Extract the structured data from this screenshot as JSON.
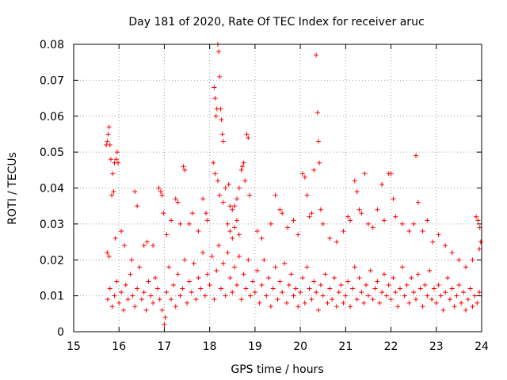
{
  "chart_data": {
    "type": "scatter",
    "title": "Day 181 of 2020, Rate Of TEC Index for receiver aruc",
    "xlabel": "GPS time / hours",
    "ylabel": "ROTI / TECUs",
    "xlim": [
      15,
      24
    ],
    "ylim": [
      0,
      0.08
    ],
    "x_ticks": [
      15,
      16,
      17,
      18,
      19,
      20,
      21,
      22,
      23,
      24
    ],
    "x_tick_labels": [
      "15",
      "16",
      "17",
      "18",
      "19",
      "20",
      "21",
      "22",
      "23",
      "24"
    ],
    "y_ticks": [
      0,
      0.01,
      0.02,
      0.03,
      0.04,
      0.05,
      0.06,
      0.07,
      0.08
    ],
    "y_tick_labels": [
      "0",
      "0.01",
      "0.02",
      "0.03",
      "0.04",
      "0.05",
      "0.06",
      "0.07",
      "0.08"
    ],
    "grid": true,
    "marker": "+",
    "marker_color": "#ff0000",
    "series": [
      {
        "points": [
          [
            15.72,
            0.052
          ],
          [
            15.74,
            0.053
          ],
          [
            15.76,
            0.055
          ],
          [
            15.78,
            0.057
          ],
          [
            15.8,
            0.052
          ],
          [
            15.82,
            0.048
          ],
          [
            15.86,
            0.044
          ],
          [
            15.9,
            0.047
          ],
          [
            15.94,
            0.048
          ],
          [
            15.96,
            0.05
          ],
          [
            15.98,
            0.047
          ],
          [
            15.88,
            0.039
          ],
          [
            15.84,
            0.038
          ],
          [
            15.74,
            0.022
          ],
          [
            15.78,
            0.021
          ],
          [
            15.92,
            0.026
          ],
          [
            16.05,
            0.028
          ],
          [
            16.12,
            0.024
          ],
          [
            16.28,
            0.02
          ],
          [
            16.35,
            0.039
          ],
          [
            16.4,
            0.035
          ],
          [
            16.55,
            0.024
          ],
          [
            16.62,
            0.025
          ],
          [
            16.75,
            0.024
          ],
          [
            16.88,
            0.04
          ],
          [
            16.92,
            0.039
          ],
          [
            16.95,
            0.038
          ],
          [
            16.98,
            0.033
          ],
          [
            17.05,
            0.027
          ],
          [
            17.15,
            0.031
          ],
          [
            17.25,
            0.037
          ],
          [
            17.3,
            0.036
          ],
          [
            17.35,
            0.03
          ],
          [
            17.42,
            0.046
          ],
          [
            17.45,
            0.045
          ],
          [
            17.55,
            0.03
          ],
          [
            17.62,
            0.033
          ],
          [
            17.75,
            0.028
          ],
          [
            17.85,
            0.037
          ],
          [
            17.92,
            0.033
          ],
          [
            17.95,
            0.031
          ],
          [
            18.1,
            0.068
          ],
          [
            18.12,
            0.065
          ],
          [
            18.14,
            0.06
          ],
          [
            18.16,
            0.062
          ],
          [
            18.18,
            0.08
          ],
          [
            18.2,
            0.078
          ],
          [
            18.22,
            0.071
          ],
          [
            18.24,
            0.062
          ],
          [
            18.26,
            0.059
          ],
          [
            18.28,
            0.055
          ],
          [
            18.3,
            0.053
          ],
          [
            18.08,
            0.047
          ],
          [
            18.12,
            0.044
          ],
          [
            18.18,
            0.042
          ],
          [
            18.22,
            0.038
          ],
          [
            18.3,
            0.036
          ],
          [
            18.35,
            0.04
          ],
          [
            18.42,
            0.041
          ],
          [
            18.45,
            0.035
          ],
          [
            18.5,
            0.034
          ],
          [
            18.55,
            0.035
          ],
          [
            18.6,
            0.037
          ],
          [
            18.65,
            0.04
          ],
          [
            18.7,
            0.045
          ],
          [
            18.72,
            0.046
          ],
          [
            18.75,
            0.047
          ],
          [
            18.78,
            0.042
          ],
          [
            18.82,
            0.055
          ],
          [
            18.85,
            0.054
          ],
          [
            18.88,
            0.038
          ],
          [
            18.4,
            0.03
          ],
          [
            18.45,
            0.028
          ],
          [
            18.5,
            0.026
          ],
          [
            18.55,
            0.029
          ],
          [
            18.6,
            0.031
          ],
          [
            18.65,
            0.027
          ],
          [
            19.05,
            0.028
          ],
          [
            19.15,
            0.026
          ],
          [
            19.35,
            0.03
          ],
          [
            19.45,
            0.038
          ],
          [
            19.55,
            0.034
          ],
          [
            19.6,
            0.033
          ],
          [
            19.72,
            0.029
          ],
          [
            19.85,
            0.031
          ],
          [
            19.95,
            0.027
          ],
          [
            20.05,
            0.044
          ],
          [
            20.1,
            0.043
          ],
          [
            20.15,
            0.038
          ],
          [
            20.2,
            0.032
          ],
          [
            20.25,
            0.033
          ],
          [
            20.3,
            0.045
          ],
          [
            20.35,
            0.077
          ],
          [
            20.38,
            0.061
          ],
          [
            20.4,
            0.053
          ],
          [
            20.42,
            0.047
          ],
          [
            20.45,
            0.034
          ],
          [
            20.5,
            0.03
          ],
          [
            20.65,
            0.026
          ],
          [
            20.8,
            0.025
          ],
          [
            20.95,
            0.028
          ],
          [
            21.05,
            0.032
          ],
          [
            21.1,
            0.031
          ],
          [
            21.2,
            0.042
          ],
          [
            21.25,
            0.039
          ],
          [
            21.3,
            0.034
          ],
          [
            21.35,
            0.033
          ],
          [
            21.42,
            0.044
          ],
          [
            21.5,
            0.03
          ],
          [
            21.6,
            0.029
          ],
          [
            21.7,
            0.034
          ],
          [
            21.8,
            0.041
          ],
          [
            21.85,
            0.031
          ],
          [
            21.95,
            0.044
          ],
          [
            22.0,
            0.044
          ],
          [
            22.05,
            0.037
          ],
          [
            22.1,
            0.032
          ],
          [
            22.25,
            0.03
          ],
          [
            22.4,
            0.028
          ],
          [
            22.5,
            0.03
          ],
          [
            22.55,
            0.049
          ],
          [
            22.6,
            0.036
          ],
          [
            22.7,
            0.028
          ],
          [
            22.8,
            0.031
          ],
          [
            22.92,
            0.025
          ],
          [
            23.05,
            0.027
          ],
          [
            23.2,
            0.024
          ],
          [
            23.35,
            0.022
          ],
          [
            23.5,
            0.02
          ],
          [
            23.65,
            0.018
          ],
          [
            23.8,
            0.02
          ],
          [
            23.88,
            0.032
          ],
          [
            23.92,
            0.031
          ],
          [
            23.96,
            0.029
          ],
          [
            23.98,
            0.025
          ],
          [
            23.95,
            0.023
          ],
          [
            15.75,
            0.009
          ],
          [
            15.8,
            0.012
          ],
          [
            15.85,
            0.007
          ],
          [
            15.9,
            0.01
          ],
          [
            15.95,
            0.014
          ],
          [
            16.0,
            0.008
          ],
          [
            16.05,
            0.011
          ],
          [
            16.1,
            0.006
          ],
          [
            16.15,
            0.013
          ],
          [
            16.2,
            0.009
          ],
          [
            16.25,
            0.016
          ],
          [
            16.3,
            0.01
          ],
          [
            16.35,
            0.007
          ],
          [
            16.4,
            0.012
          ],
          [
            16.45,
            0.018
          ],
          [
            16.5,
            0.009
          ],
          [
            16.55,
            0.011
          ],
          [
            16.6,
            0.006
          ],
          [
            16.65,
            0.014
          ],
          [
            16.7,
            0.01
          ],
          [
            16.75,
            0.008
          ],
          [
            16.8,
            0.015
          ],
          [
            16.85,
            0.012
          ],
          [
            16.9,
            0.009
          ],
          [
            16.95,
            0.006
          ],
          [
            17.0,
            0.002
          ],
          [
            17.02,
            0.004
          ],
          [
            17.05,
            0.011
          ],
          [
            17.1,
            0.018
          ],
          [
            17.15,
            0.009
          ],
          [
            17.2,
            0.013
          ],
          [
            17.25,
            0.007
          ],
          [
            17.3,
            0.016
          ],
          [
            17.35,
            0.01
          ],
          [
            17.4,
            0.012
          ],
          [
            17.45,
            0.02
          ],
          [
            17.5,
            0.008
          ],
          [
            17.55,
            0.014
          ],
          [
            17.6,
            0.011
          ],
          [
            17.65,
            0.019
          ],
          [
            17.7,
            0.009
          ],
          [
            17.75,
            0.015
          ],
          [
            17.8,
            0.012
          ],
          [
            17.85,
            0.022
          ],
          [
            17.9,
            0.01
          ],
          [
            17.95,
            0.016
          ],
          [
            18.0,
            0.013
          ],
          [
            18.05,
            0.021
          ],
          [
            18.1,
            0.009
          ],
          [
            18.15,
            0.017
          ],
          [
            18.2,
            0.024
          ],
          [
            18.25,
            0.012
          ],
          [
            18.3,
            0.019
          ],
          [
            18.35,
            0.01
          ],
          [
            18.4,
            0.022
          ],
          [
            18.45,
            0.015
          ],
          [
            18.5,
            0.011
          ],
          [
            18.55,
            0.018
          ],
          [
            18.6,
            0.013
          ],
          [
            18.65,
            0.021
          ],
          [
            18.7,
            0.009
          ],
          [
            18.75,
            0.016
          ],
          [
            18.8,
            0.012
          ],
          [
            18.85,
            0.02
          ],
          [
            18.9,
            0.01
          ],
          [
            18.95,
            0.014
          ],
          [
            19.0,
            0.011
          ],
          [
            19.05,
            0.017
          ],
          [
            19.1,
            0.008
          ],
          [
            19.15,
            0.013
          ],
          [
            19.2,
            0.02
          ],
          [
            19.25,
            0.01
          ],
          [
            19.3,
            0.015
          ],
          [
            19.35,
            0.007
          ],
          [
            19.4,
            0.012
          ],
          [
            19.45,
            0.018
          ],
          [
            19.5,
            0.009
          ],
          [
            19.55,
            0.014
          ],
          [
            19.6,
            0.011
          ],
          [
            19.65,
            0.019
          ],
          [
            19.7,
            0.008
          ],
          [
            19.75,
            0.013
          ],
          [
            19.8,
            0.016
          ],
          [
            19.85,
            0.01
          ],
          [
            19.9,
            0.012
          ],
          [
            19.95,
            0.007
          ],
          [
            20.0,
            0.011
          ],
          [
            20.05,
            0.015
          ],
          [
            20.1,
            0.008
          ],
          [
            20.15,
            0.018
          ],
          [
            20.2,
            0.012
          ],
          [
            20.25,
            0.009
          ],
          [
            20.3,
            0.014
          ],
          [
            20.35,
            0.011
          ],
          [
            20.4,
            0.006
          ],
          [
            20.45,
            0.013
          ],
          [
            20.5,
            0.01
          ],
          [
            20.55,
            0.016
          ],
          [
            20.6,
            0.008
          ],
          [
            20.65,
            0.012
          ],
          [
            20.7,
            0.009
          ],
          [
            20.75,
            0.015
          ],
          [
            20.8,
            0.007
          ],
          [
            20.85,
            0.011
          ],
          [
            20.9,
            0.013
          ],
          [
            20.95,
            0.008
          ],
          [
            21.0,
            0.01
          ],
          [
            21.05,
            0.014
          ],
          [
            21.1,
            0.007
          ],
          [
            21.15,
            0.012
          ],
          [
            21.2,
            0.018
          ],
          [
            21.25,
            0.009
          ],
          [
            21.3,
            0.015
          ],
          [
            21.35,
            0.011
          ],
          [
            21.4,
            0.008
          ],
          [
            21.45,
            0.013
          ],
          [
            21.5,
            0.01
          ],
          [
            21.55,
            0.017
          ],
          [
            21.6,
            0.009
          ],
          [
            21.65,
            0.012
          ],
          [
            21.7,
            0.014
          ],
          [
            21.75,
            0.008
          ],
          [
            21.8,
            0.011
          ],
          [
            21.85,
            0.016
          ],
          [
            21.9,
            0.01
          ],
          [
            21.95,
            0.013
          ],
          [
            22.0,
            0.009
          ],
          [
            22.05,
            0.015
          ],
          [
            22.1,
            0.011
          ],
          [
            22.15,
            0.007
          ],
          [
            22.2,
            0.012
          ],
          [
            22.25,
            0.018
          ],
          [
            22.3,
            0.01
          ],
          [
            22.35,
            0.013
          ],
          [
            22.4,
            0.008
          ],
          [
            22.45,
            0.015
          ],
          [
            22.5,
            0.011
          ],
          [
            22.55,
            0.009
          ],
          [
            22.6,
            0.016
          ],
          [
            22.65,
            0.012
          ],
          [
            22.7,
            0.007
          ],
          [
            22.75,
            0.013
          ],
          [
            22.8,
            0.01
          ],
          [
            22.85,
            0.017
          ],
          [
            22.9,
            0.009
          ],
          [
            22.95,
            0.012
          ],
          [
            23.0,
            0.008
          ],
          [
            23.05,
            0.013
          ],
          [
            23.1,
            0.01
          ],
          [
            23.15,
            0.006
          ],
          [
            23.2,
            0.011
          ],
          [
            23.25,
            0.015
          ],
          [
            23.3,
            0.009
          ],
          [
            23.35,
            0.012
          ],
          [
            23.4,
            0.007
          ],
          [
            23.45,
            0.01
          ],
          [
            23.5,
            0.013
          ],
          [
            23.55,
            0.008
          ],
          [
            23.6,
            0.011
          ],
          [
            23.65,
            0.006
          ],
          [
            23.7,
            0.009
          ],
          [
            23.75,
            0.012
          ],
          [
            23.8,
            0.007
          ],
          [
            23.85,
            0.01
          ],
          [
            23.9,
            0.008
          ],
          [
            23.95,
            0.011
          ]
        ]
      }
    ]
  }
}
